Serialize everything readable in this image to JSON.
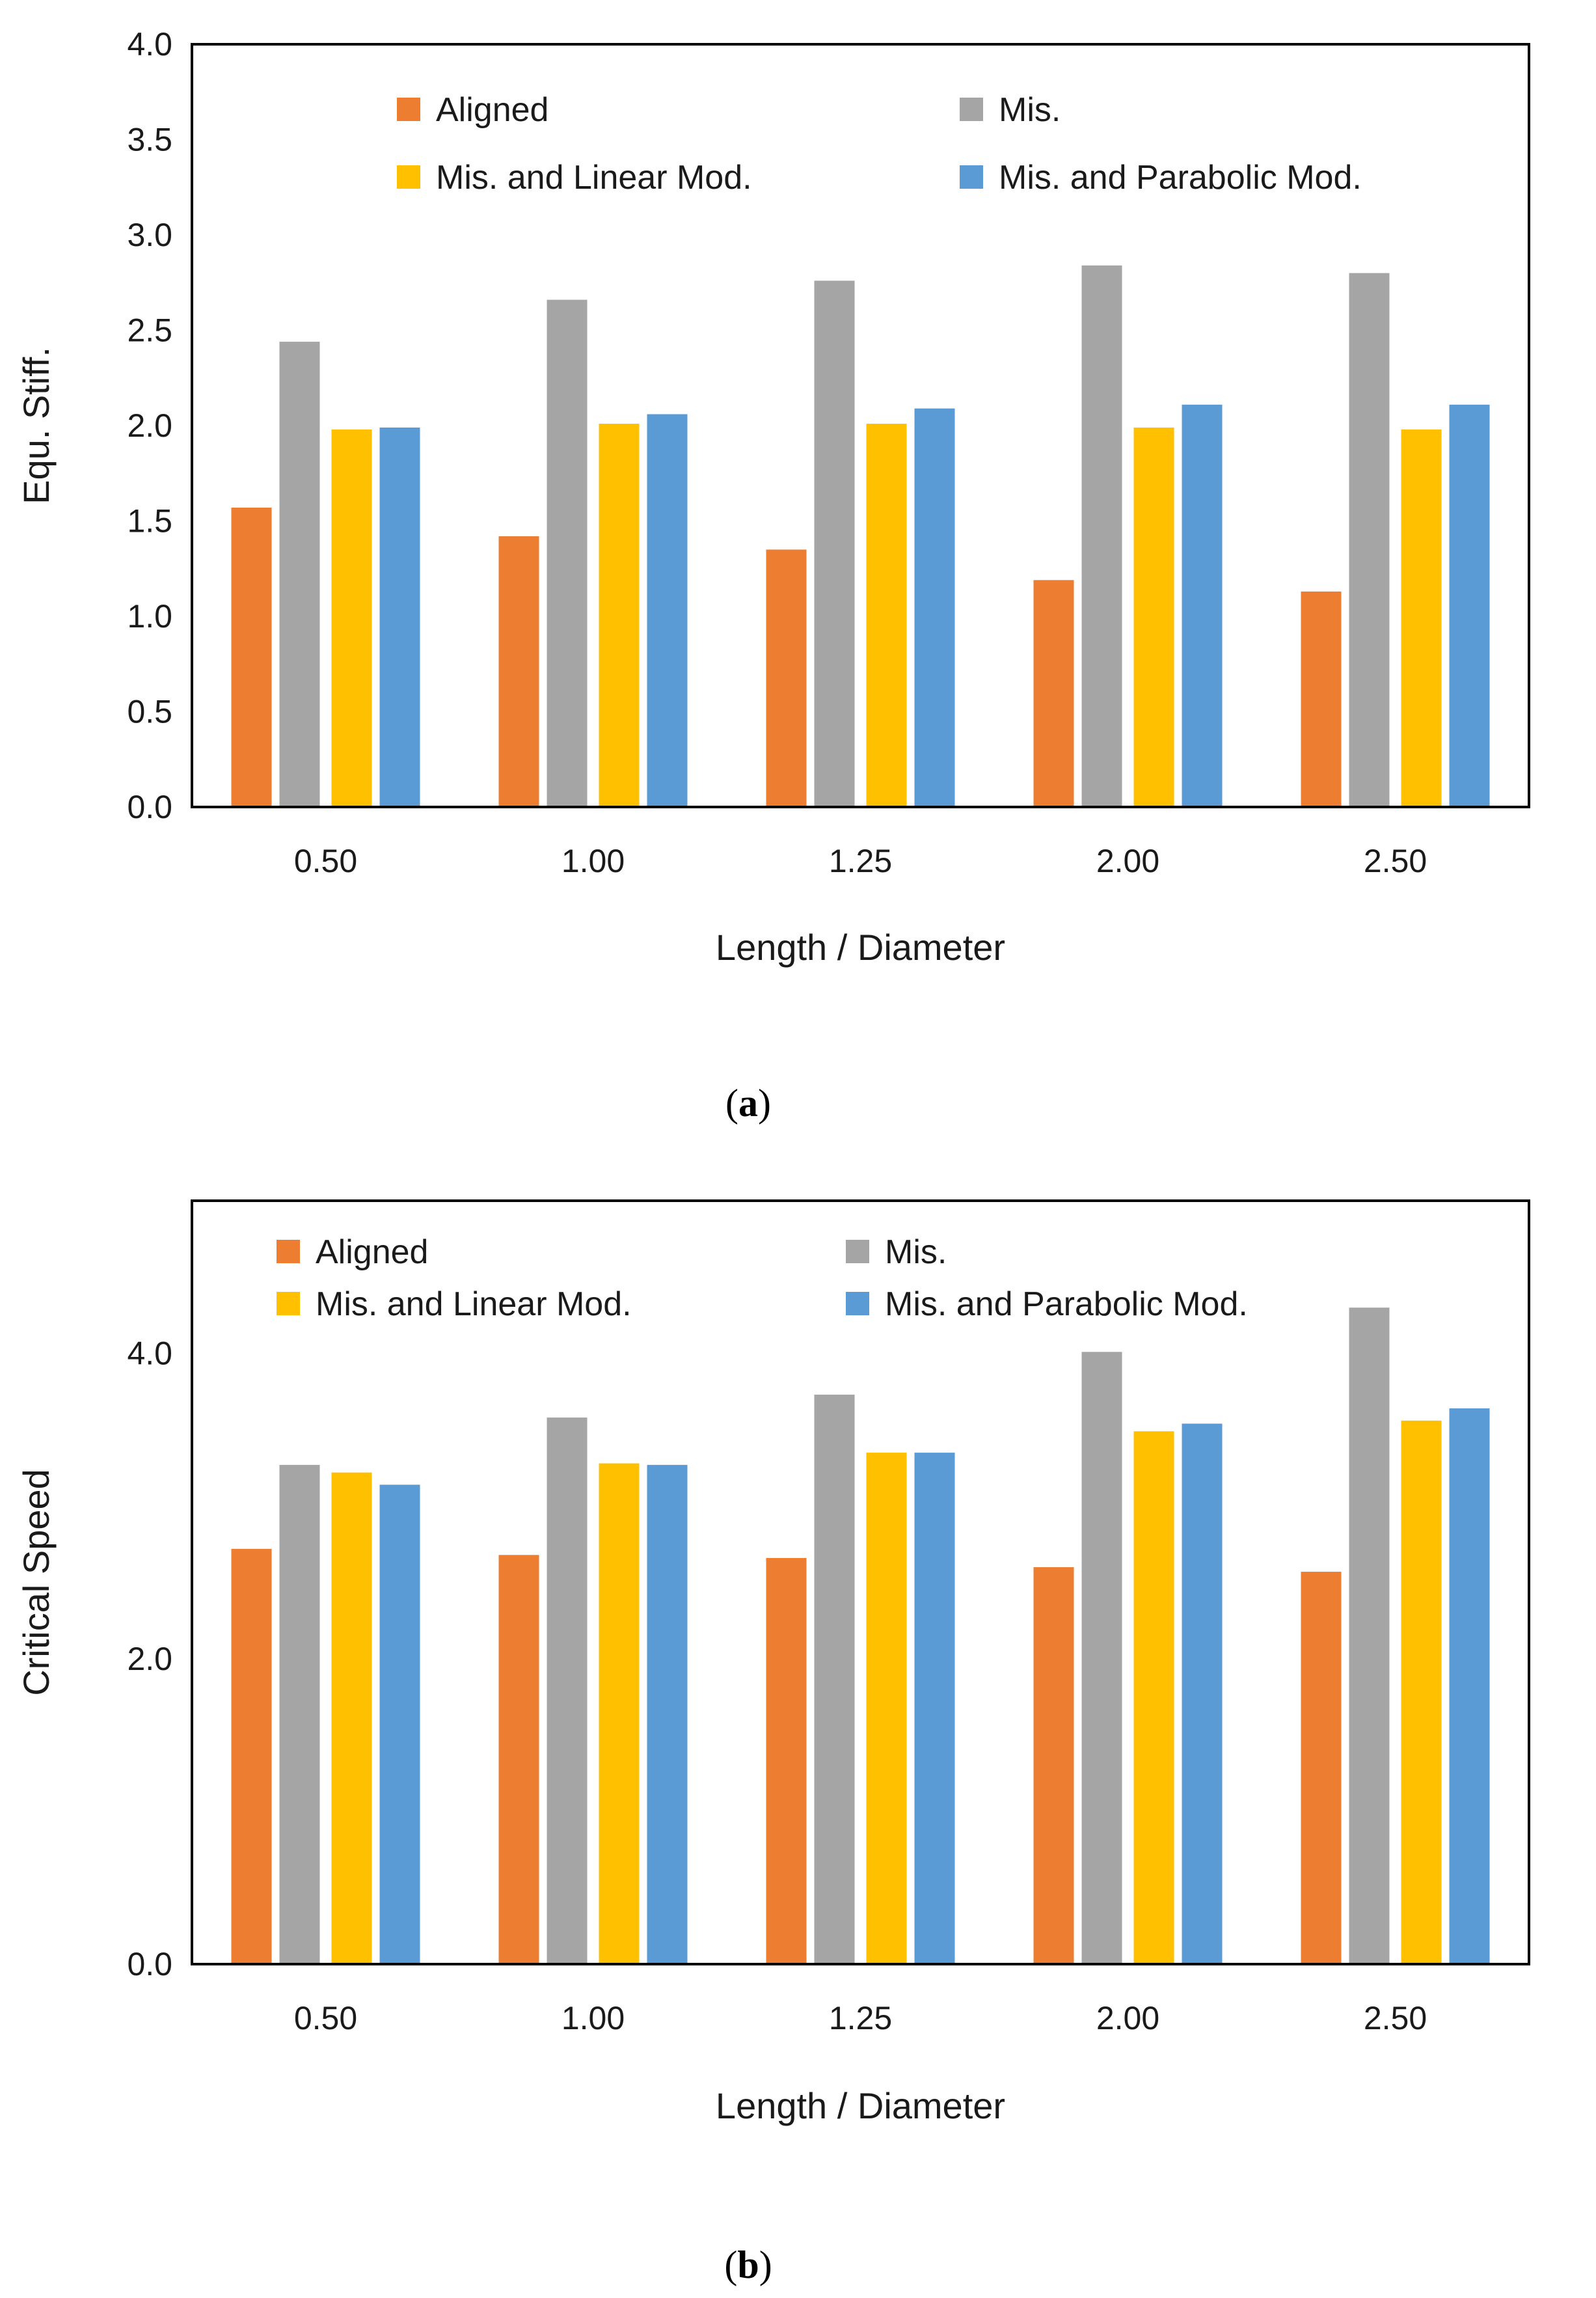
{
  "colors": {
    "Aligned": "#ED7D31",
    "Mis.": "#A5A5A5",
    "Mis. and Linear Mod.": "#FFC000",
    "Mis. and Parabolic Mod.": "#5B9BD5"
  },
  "chart_data": [
    {
      "type": "bar",
      "panel": "a",
      "caption_letter": "a",
      "xlabel": "Length / Diameter",
      "ylabel": "Equ. Stiff.",
      "categories": [
        "0.50",
        "1.00",
        "1.25",
        "2.00",
        "2.50"
      ],
      "ylim": [
        0,
        4
      ],
      "yticks": [
        "0.0",
        "0.5",
        "1.0",
        "1.5",
        "2.0",
        "2.5",
        "3.0",
        "3.5",
        "4.0"
      ],
      "grid": false,
      "legend_placement": "top",
      "series": [
        {
          "name": "Aligned",
          "values": [
            1.57,
            1.42,
            1.35,
            1.19,
            1.13
          ]
        },
        {
          "name": "Mis.",
          "values": [
            2.44,
            2.66,
            2.76,
            2.84,
            2.8
          ]
        },
        {
          "name": "Mis. and Linear Mod.",
          "values": [
            1.98,
            2.01,
            2.01,
            1.99,
            1.98
          ]
        },
        {
          "name": "Mis. and Parabolic Mod.",
          "values": [
            1.99,
            2.06,
            2.09,
            2.11,
            2.11
          ]
        }
      ]
    },
    {
      "type": "bar",
      "panel": "b",
      "caption_letter": "b",
      "xlabel": "Length / Diameter",
      "ylabel": "Critical Speed",
      "categories": [
        "0.50",
        "1.00",
        "1.25",
        "2.00",
        "2.50"
      ],
      "ylim": [
        0,
        5
      ],
      "yticks": [
        "0.0",
        "2.0",
        "4.0"
      ],
      "grid": false,
      "legend_placement": "top",
      "series": [
        {
          "name": "Aligned",
          "values": [
            2.72,
            2.68,
            2.66,
            2.6,
            2.57
          ]
        },
        {
          "name": "Mis.",
          "values": [
            3.27,
            3.58,
            3.73,
            4.01,
            4.3
          ]
        },
        {
          "name": "Mis. and Linear Mod.",
          "values": [
            3.22,
            3.28,
            3.35,
            3.49,
            3.56
          ]
        },
        {
          "name": "Mis. and Parabolic Mod.",
          "values": [
            3.14,
            3.27,
            3.35,
            3.54,
            3.64
          ]
        }
      ]
    }
  ]
}
